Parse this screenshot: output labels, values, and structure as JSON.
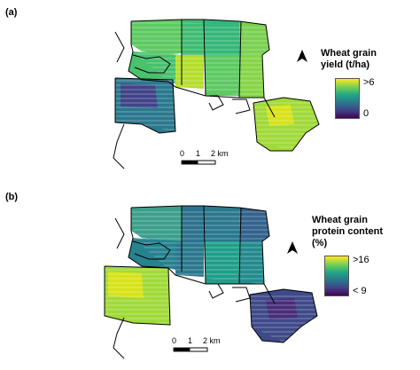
{
  "panels": [
    {
      "label": "(a)",
      "legend": {
        "title": "Wheat grain\nyield (t/ha)",
        "max_label": ">6",
        "min_label": "0"
      },
      "scalebar": {
        "ticks": [
          "0",
          "1",
          "2 km"
        ]
      }
    },
    {
      "label": "(b)",
      "legend": {
        "title": "Wheat grain\nprotein content\n(%)",
        "max_label": ">16",
        "min_label": "< 9"
      },
      "scalebar": {
        "ticks": [
          "0",
          "1",
          "2 km"
        ]
      }
    }
  ],
  "colors": {
    "viridis": [
      "#440154",
      "#414487",
      "#2a788e",
      "#22a884",
      "#7ad151",
      "#fde725"
    ]
  },
  "icons": [
    "north-arrow-icon"
  ]
}
